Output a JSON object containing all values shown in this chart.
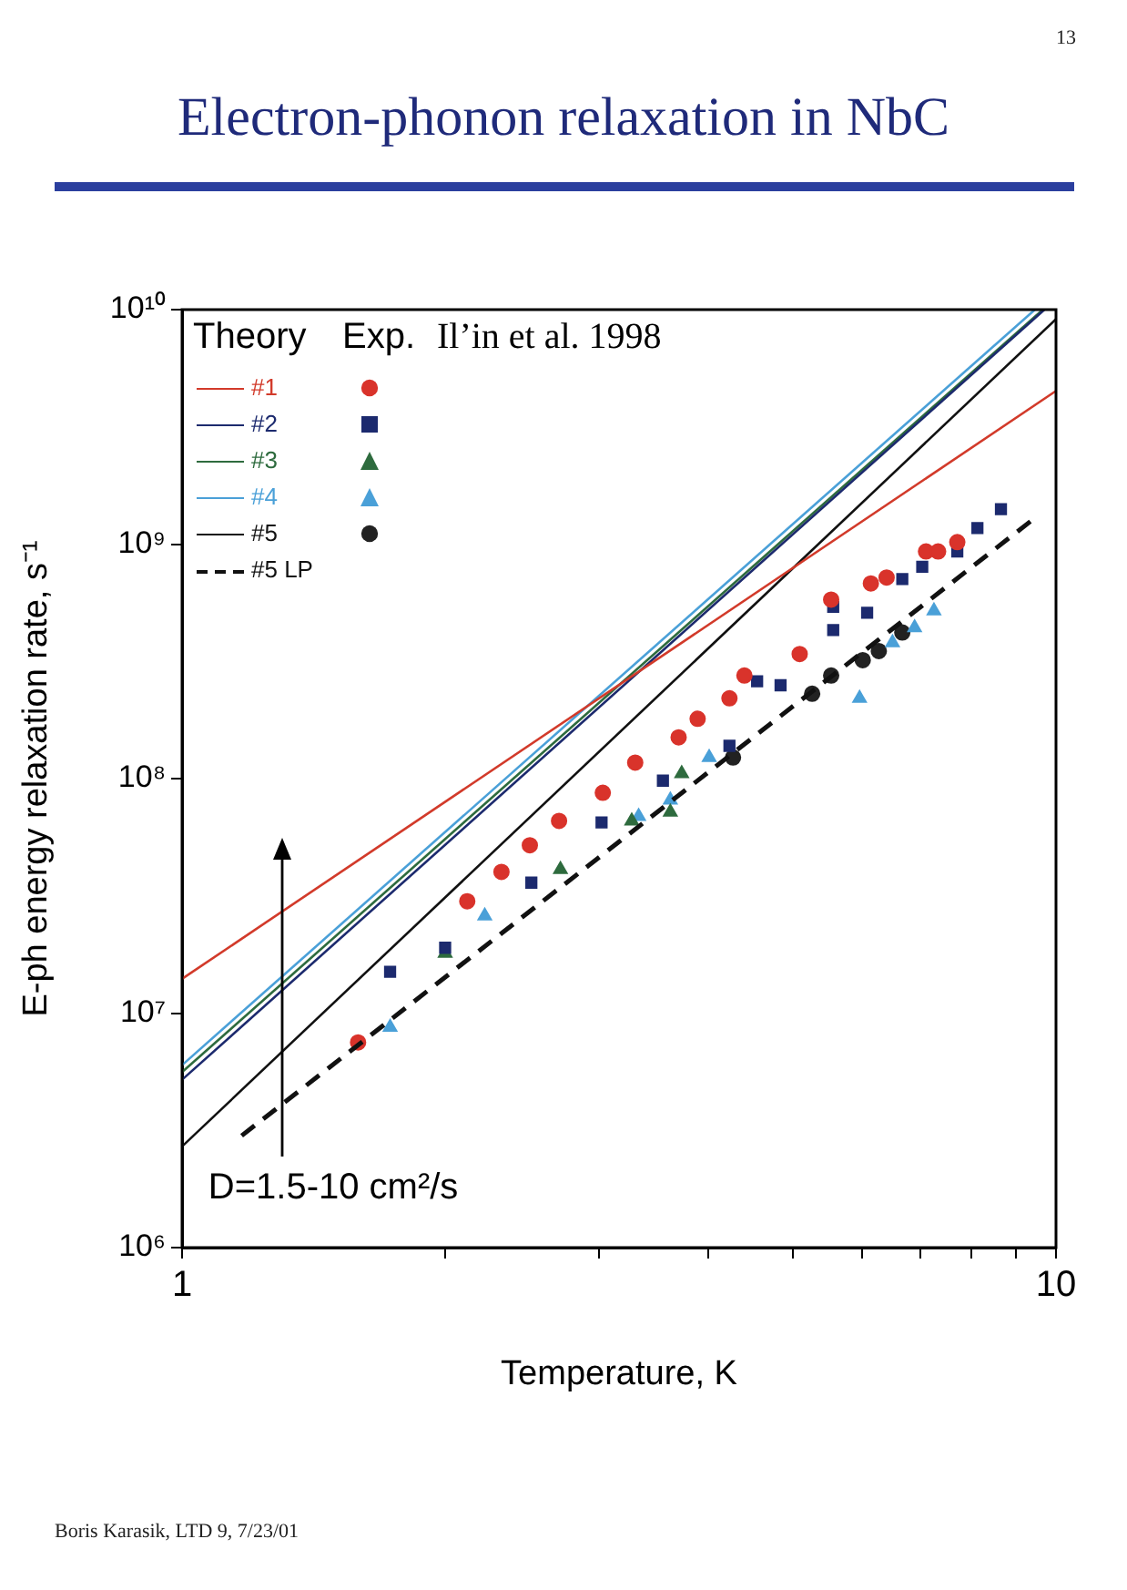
{
  "chart_data": {
    "type": "line",
    "title": "Electron-phonon relaxation in NbC",
    "xlabel": "Temperature, K",
    "ylabel": "E-ph energy relaxation rate, s⁻¹",
    "legend_title": "Theory",
    "log": "xy",
    "grid": false,
    "legend": "top left",
    "xlim": [
      1,
      10
    ],
    "xticks": [
      1,
      {
        "value": 2,
        "label": null
      },
      {
        "value": 3,
        "label": null
      },
      {
        "value": 4,
        "label": null
      },
      {
        "value": 5,
        "label": null
      },
      {
        "value": 6,
        "label": null
      },
      {
        "value": 7,
        "label": null
      },
      {
        "value": 8,
        "label": null
      },
      {
        "value": 9,
        "label": null
      },
      10
    ],
    "ylim": [
      1000000.0,
      10000000000.0
    ],
    "yticks": [
      {
        "value": 1000000.0,
        "label": "10⁶"
      },
      {
        "value": 10000000.0,
        "label": "10⁷"
      },
      {
        "value": 100000000.0,
        "label": "10⁸"
      },
      {
        "value": 1000000000.0,
        "label": "10⁹"
      },
      {
        "value": 10000000000.0,
        "label": "10¹⁰"
      }
    ],
    "annotations": [
      "Exp.",
      "Il’in et al. 1998",
      "D=1.5-10 cm²/s",
      "Boris Karasik, LTD 9, 7/23/01",
      "13"
    ],
    "series": [
      {
        "name": "#1",
        "type": "line",
        "color": "#d23a2a",
        "x": [
          1,
          10
        ],
        "values": [
          14000000.0,
          4500000000.0
        ]
      },
      {
        "name": "#2",
        "type": "line",
        "color": "#1c2a6e",
        "x": [
          1,
          9.7
        ],
        "values": [
          5200000.0,
          10000000000.0
        ]
      },
      {
        "name": "#3",
        "type": "line",
        "color": "#2e6b3e",
        "x": [
          1,
          9.66
        ],
        "values": [
          5600000.0,
          10000000000.0
        ]
      },
      {
        "name": "#4",
        "type": "line",
        "color": "#4aa0d8",
        "x": [
          1,
          9.46
        ],
        "values": [
          6000000.0,
          10000000000.0
        ]
      },
      {
        "name": "#5",
        "type": "line",
        "color": "#111111",
        "x": [
          1,
          10
        ],
        "values": [
          2700000.0,
          9100000000.0
        ]
      },
      {
        "name": "#5 LP",
        "type": "line",
        "line_style": "dashed",
        "color": "#111111",
        "x": [
          1.17,
          9.4
        ],
        "values": [
          3000000.0,
          1270000000.0
        ]
      },
      {
        "type": "scatter",
        "marker": "circle",
        "color": "#d9332b",
        "x": [
          1.59,
          2.12,
          2.32,
          2.5,
          2.7,
          3.03,
          3.3,
          3.7,
          3.89,
          4.23,
          4.4,
          5.09,
          5.53,
          6.14,
          6.4,
          7.1,
          7.33,
          7.71
        ],
        "values": [
          7500000.0,
          30000000.0,
          40000000.0,
          52000000.0,
          66000000.0,
          87000000.0,
          117000000.0,
          150000000.0,
          180000000.0,
          220000000.0,
          275000000.0,
          340000000.0,
          580000000.0,
          680000000.0,
          720000000.0,
          930000000.0,
          930000000.0,
          1020000000.0
        ]
      },
      {
        "type": "scatter",
        "marker": "square",
        "color": "#1c2a6e",
        "x": [
          8.65,
          8.13,
          7.71,
          7.03,
          6.67,
          6.08,
          5.56,
          5.56,
          4.84,
          4.55,
          4.23,
          3.55,
          3.02,
          2.51,
          2.0,
          1.73
        ],
        "values": [
          1410000000.0,
          1170000000.0,
          930000000.0,
          800000000.0,
          710000000.0,
          510000000.0,
          540000000.0,
          430000000.0,
          250000000.0,
          260000000.0,
          138000000.0,
          98000000.0,
          65000000.0,
          36000000.0,
          19000000.0,
          15000000.0
        ]
      },
      {
        "type": "scatter",
        "marker": "triangle",
        "color": "#2e6b3e",
        "x": [
          3.73,
          3.62,
          3.27,
          2.71,
          2.0
        ],
        "values": [
          105000000.0,
          72000000.0,
          66000000.0,
          41000000.0,
          18000000.0
        ]
      },
      {
        "type": "scatter",
        "marker": "triangle",
        "color": "#4aa0d8",
        "x": [
          7.25,
          6.89,
          6.5,
          5.96,
          4.01,
          3.62,
          3.33,
          2.22,
          1.73
        ],
        "values": [
          520000000.0,
          440000000.0,
          380000000.0,
          220000000.0,
          123000000.0,
          81000000.0,
          69000000.0,
          26000000.0,
          8700000.0
        ]
      },
      {
        "type": "scatter",
        "marker": "circle",
        "color": "#222222",
        "x": [
          6.67,
          6.27,
          6.01,
          5.53,
          5.26,
          4.27
        ],
        "values": [
          420000000.0,
          350000000.0,
          320000000.0,
          275000000.0,
          230000000.0,
          123000000.0
        ]
      }
    ]
  }
}
